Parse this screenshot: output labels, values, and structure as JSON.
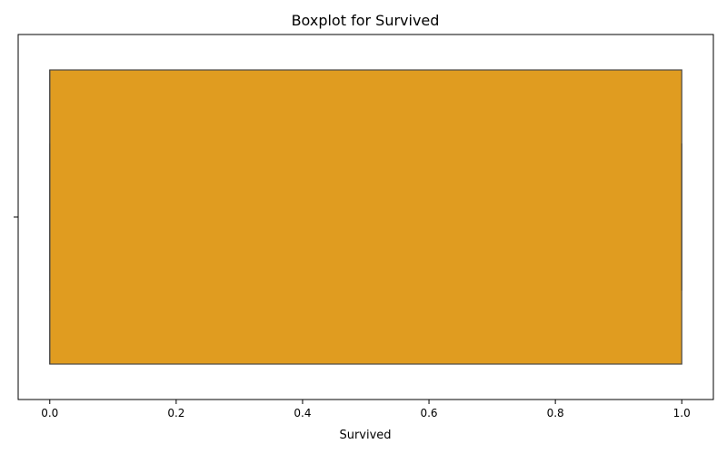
{
  "chart_data": {
    "type": "boxplot",
    "orientation": "horizontal",
    "title": "Boxplot for Survived",
    "xlabel": "Survived",
    "ylabel": "",
    "xlim": [
      -0.05,
      1.05
    ],
    "x_ticks": [
      0.0,
      0.2,
      0.4,
      0.6,
      0.8,
      1.0
    ],
    "x_tick_labels": [
      "0.0",
      "0.2",
      "0.4",
      "0.6",
      "0.8",
      "1.0"
    ],
    "grid": false,
    "legend": "none",
    "box": {
      "min": 0.0,
      "q1": 0.0,
      "median": 0.0,
      "q3": 1.0,
      "max": 1.0,
      "fill_color": "#e09c20",
      "edge_color": "#4a4a4a"
    }
  }
}
